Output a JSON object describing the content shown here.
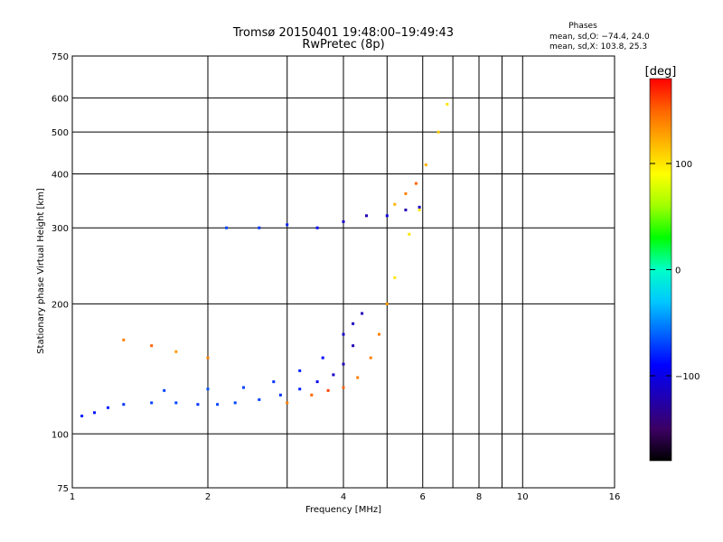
{
  "chart_data": {
    "type": "scatter",
    "title": "Tromsø 20150401 19:48:00–19:49:43",
    "subtitle": "RwPretec (8p)",
    "xlabel": "Frequency [MHz]",
    "ylabel": "Stationary phase Virtual Height [km]",
    "x_scale": "log",
    "y_scale": "log",
    "xlim": [
      1,
      16
    ],
    "ylim": [
      75,
      750
    ],
    "x_ticks": [
      1,
      2,
      4,
      6,
      8,
      10,
      16
    ],
    "x_ticklabels": [
      "1",
      "2",
      "4",
      "6",
      "8",
      "10",
      "16"
    ],
    "x_minor_ticks": [
      3,
      5,
      7,
      9
    ],
    "y_ticks": [
      75,
      100,
      200,
      300,
      400,
      500,
      600,
      750
    ],
    "y_ticklabels": [
      "75",
      "100",
      "200",
      "300",
      "400",
      "500",
      "600",
      "750"
    ],
    "grid": true,
    "phase_stats": {
      "header": "Phases",
      "line_o": "mean, sd,O: −74.4, 24.0",
      "line_x": "mean, sd,X: 103.8, 25.3"
    },
    "colorbar": {
      "label": "[deg]",
      "range": [
        -180,
        180
      ],
      "ticks": [
        100,
        0,
        -100
      ],
      "ticklabels": [
        "100",
        "0",
        "−100"
      ],
      "colormap": [
        "#000000",
        "#3c0064",
        "#1e00b4",
        "#0000ff",
        "#0064ff",
        "#00c8ff",
        "#00ffc8",
        "#00ff00",
        "#a0ff00",
        "#ffff00",
        "#ffb400",
        "#ff6400",
        "#ff0000"
      ]
    },
    "series": [
      {
        "trace": "O-low-E-F1",
        "values": [
          [
            1.05,
            110,
            -80
          ],
          [
            1.12,
            112,
            -85
          ],
          [
            1.2,
            115,
            -80
          ],
          [
            1.3,
            117,
            -75
          ],
          [
            1.5,
            118,
            -70
          ],
          [
            1.7,
            118,
            -70
          ],
          [
            1.9,
            117,
            -75
          ],
          [
            2.1,
            117,
            -70
          ],
          [
            2.3,
            118,
            -70
          ],
          [
            2.6,
            120,
            -70
          ],
          [
            2.9,
            123,
            -75
          ],
          [
            3.2,
            127,
            -80
          ],
          [
            3.5,
            132,
            -95
          ],
          [
            3.8,
            137,
            -110
          ],
          [
            4.0,
            145,
            -120
          ],
          [
            4.2,
            160,
            -120
          ],
          [
            4.4,
            190,
            -120
          ]
        ]
      },
      {
        "trace": "O-upper-band",
        "values": [
          [
            1.6,
            126,
            -70
          ],
          [
            2.0,
            127,
            -65
          ],
          [
            2.4,
            128,
            -70
          ],
          [
            2.8,
            132,
            -75
          ],
          [
            3.2,
            140,
            -80
          ],
          [
            3.6,
            150,
            -90
          ],
          [
            4.0,
            170,
            -110
          ],
          [
            4.2,
            180,
            -115
          ]
        ]
      },
      {
        "trace": "X-low",
        "values": [
          [
            1.3,
            165,
            140
          ],
          [
            1.5,
            160,
            150
          ],
          [
            1.7,
            155,
            130
          ],
          [
            2.0,
            150,
            140
          ],
          [
            3.0,
            118,
            140
          ],
          [
            3.4,
            123,
            150
          ],
          [
            3.7,
            126,
            160
          ],
          [
            4.0,
            128,
            150
          ],
          [
            4.3,
            135,
            140
          ],
          [
            4.6,
            150,
            140
          ],
          [
            4.8,
            170,
            140
          ],
          [
            5.0,
            200,
            130
          ],
          [
            5.2,
            230,
            100
          ],
          [
            5.6,
            290,
            100
          ],
          [
            5.9,
            330,
            100
          ]
        ]
      },
      {
        "trace": "O-F2",
        "values": [
          [
            2.2,
            300,
            -70
          ],
          [
            2.6,
            300,
            -75
          ],
          [
            3.0,
            305,
            -80
          ],
          [
            3.5,
            300,
            -90
          ],
          [
            4.0,
            310,
            -110
          ],
          [
            4.5,
            320,
            -120
          ],
          [
            5.0,
            320,
            -100
          ],
          [
            5.5,
            330,
            -120
          ],
          [
            5.9,
            335,
            -110
          ]
        ]
      },
      {
        "trace": "X-F2",
        "values": [
          [
            5.2,
            340,
            120
          ],
          [
            5.5,
            360,
            140
          ],
          [
            5.8,
            380,
            150
          ],
          [
            6.1,
            420,
            120
          ],
          [
            6.5,
            500,
            110
          ],
          [
            6.8,
            580,
            100
          ]
        ]
      }
    ]
  }
}
